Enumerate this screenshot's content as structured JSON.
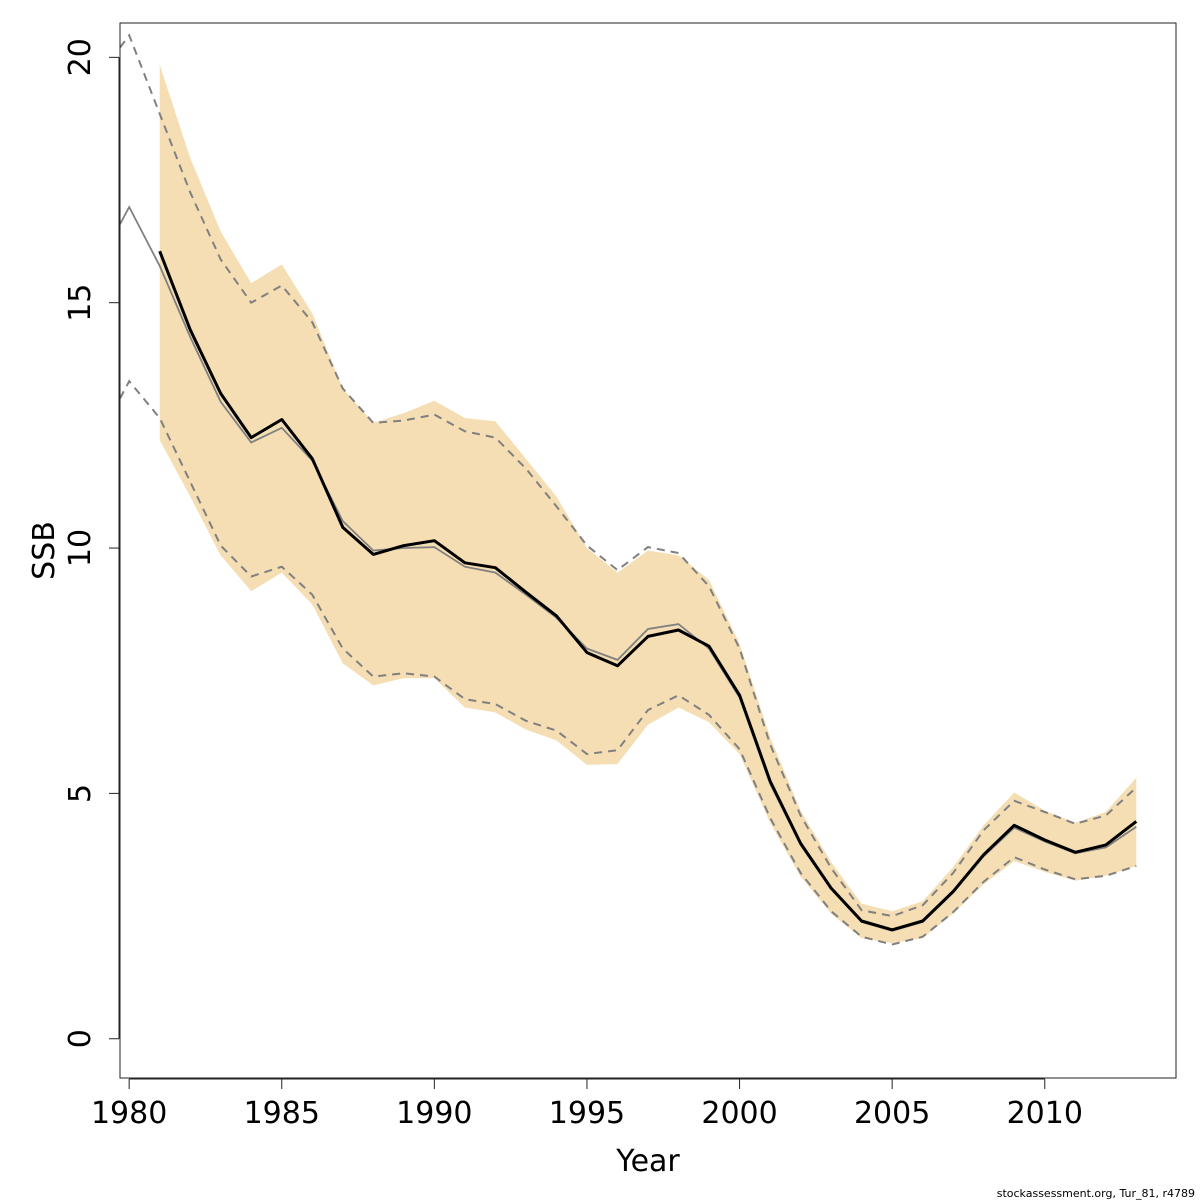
{
  "chart_data": {
    "type": "line",
    "xlabel": "Year",
    "ylabel": "SSB",
    "xlim": [
      1979.7,
      2014.3
    ],
    "ylim": [
      -0.8,
      20.7
    ],
    "x_ticks": [
      1980,
      1985,
      1990,
      1995,
      2000,
      2005,
      2010
    ],
    "y_ticks": [
      0,
      5,
      10,
      15,
      20
    ],
    "grid": false,
    "legend": "none",
    "colors": {
      "band": "#f5deb3",
      "current": "#000000",
      "previous": "#808080"
    },
    "current": {
      "x": [
        1981,
        1982,
        1983,
        1984,
        1985,
        1986,
        1987,
        1988,
        1989,
        1990,
        1991,
        1992,
        1993,
        1994,
        1995,
        1996,
        1997,
        1998,
        1999,
        2000,
        2001,
        2002,
        2003,
        2004,
        2005,
        2006,
        2007,
        2008,
        2009,
        2010,
        2011,
        2012,
        2013
      ],
      "estimate": [
        16.05,
        14.45,
        13.15,
        12.25,
        12.62,
        11.82,
        10.42,
        9.87,
        10.05,
        10.15,
        9.7,
        9.6,
        9.1,
        8.62,
        7.87,
        7.6,
        8.2,
        8.33,
        8.0,
        7.0,
        5.25,
        3.98,
        3.07,
        2.4,
        2.22,
        2.4,
        3.0,
        3.75,
        4.35,
        4.05,
        3.8,
        3.95,
        4.43
      ],
      "lower": [
        12.2,
        11.05,
        9.85,
        9.12,
        9.5,
        8.85,
        7.65,
        7.2,
        7.35,
        7.35,
        6.75,
        6.65,
        6.3,
        6.08,
        5.58,
        5.6,
        6.4,
        6.75,
        6.45,
        5.8,
        4.4,
        3.3,
        2.55,
        2.05,
        1.95,
        2.05,
        2.55,
        3.15,
        3.62,
        3.4,
        3.22,
        3.32,
        3.52
      ],
      "upper": [
        19.85,
        17.95,
        16.45,
        15.4,
        15.78,
        14.78,
        13.25,
        12.55,
        12.75,
        13.0,
        12.65,
        12.58,
        11.82,
        11.05,
        10.0,
        9.5,
        9.95,
        9.85,
        9.35,
        8.05,
        6.15,
        4.65,
        3.6,
        2.75,
        2.6,
        2.8,
        3.5,
        4.35,
        5.02,
        4.65,
        4.4,
        4.62,
        5.32
      ]
    },
    "previous": {
      "x": [
        1979.7,
        1980,
        1981,
        1982,
        1983,
        1984,
        1985,
        1986,
        1987,
        1988,
        1989,
        1990,
        1991,
        1992,
        1993,
        1994,
        1995,
        1996,
        1997,
        1998,
        1999,
        2000,
        2001,
        2002,
        2003,
        2004,
        2005,
        2006,
        2007,
        2008,
        2009,
        2010,
        2011,
        2012,
        2013
      ],
      "estimate": [
        16.6,
        16.95,
        15.75,
        14.3,
        12.98,
        12.15,
        12.45,
        11.78,
        10.55,
        9.95,
        10.0,
        10.02,
        9.62,
        9.5,
        9.05,
        8.58,
        7.95,
        7.72,
        8.35,
        8.45,
        7.95,
        6.95,
        5.2,
        3.95,
        3.05,
        2.38,
        2.2,
        2.38,
        2.98,
        3.72,
        4.3,
        4.02,
        3.78,
        3.9,
        4.32
      ],
      "lower": [
        13.05,
        13.4,
        12.65,
        11.35,
        10.05,
        9.42,
        9.62,
        9.05,
        7.95,
        7.38,
        7.45,
        7.38,
        6.92,
        6.82,
        6.48,
        6.28,
        5.8,
        5.88,
        6.7,
        7.0,
        6.6,
        5.9,
        4.5,
        3.38,
        2.6,
        2.08,
        1.92,
        2.08,
        2.58,
        3.2,
        3.7,
        3.45,
        3.25,
        3.32,
        3.52
      ],
      "upper": [
        20.2,
        20.45,
        18.85,
        17.25,
        15.88,
        15.0,
        15.35,
        14.6,
        13.25,
        12.55,
        12.6,
        12.72,
        12.38,
        12.25,
        11.62,
        10.85,
        10.05,
        9.55,
        10.02,
        9.9,
        9.22,
        7.95,
        6.0,
        4.55,
        3.48,
        2.62,
        2.5,
        2.72,
        3.38,
        4.25,
        4.85,
        4.62,
        4.38,
        4.55,
        5.12
      ]
    }
  },
  "footer": {
    "credit": "stockassessment.org, Tur_81, r4789"
  }
}
